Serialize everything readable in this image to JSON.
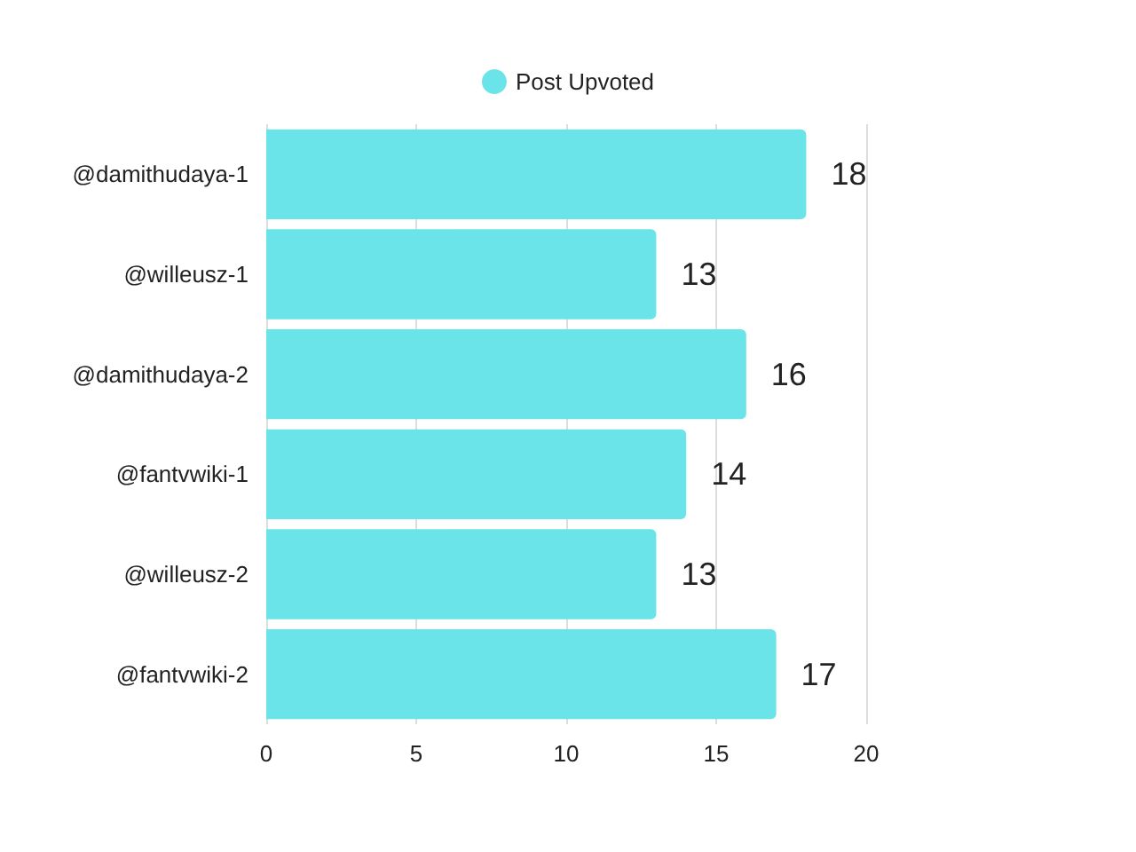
{
  "chart_data": {
    "type": "bar",
    "orientation": "horizontal",
    "categories": [
      "@damithudaya-1",
      "@willeusz-1",
      "@damithudaya-2",
      "@fantvwiki-1",
      "@willeusz-2",
      "@fantvwiki-2"
    ],
    "series": [
      {
        "name": "Post Upvoted",
        "color": "#6ae4e8",
        "values": [
          18,
          13,
          16,
          14,
          13,
          17
        ]
      }
    ],
    "xlim": [
      0,
      20
    ],
    "xticks": [
      0,
      5,
      10,
      15,
      20
    ],
    "grid": "x",
    "legend": "top",
    "data_labels": true
  }
}
